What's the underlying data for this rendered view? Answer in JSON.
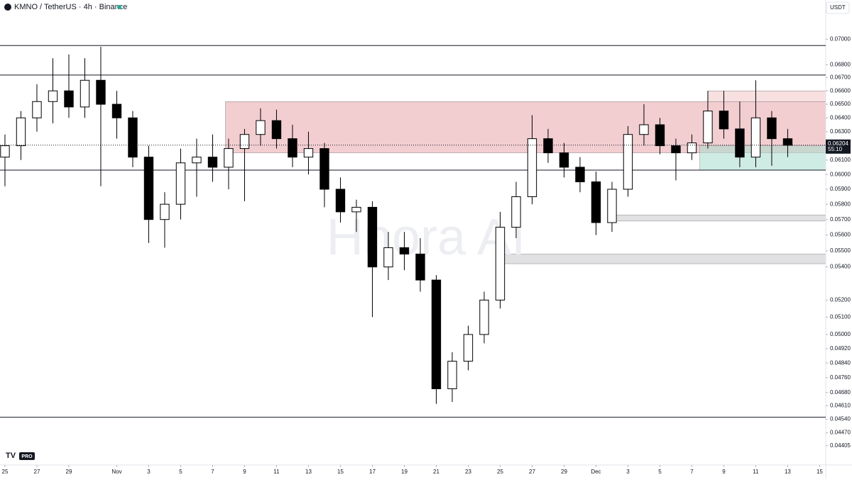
{
  "chart_data": {
    "type": "candlestick",
    "title": "KMNO / TetherUS · 4h · Binance",
    "currency": "USDT",
    "watermark": "Hnora AI",
    "logo": "PRO",
    "countdown": "55:10",
    "last_price": {
      "value": 0.06204,
      "label": "0.06204"
    },
    "log_scale": true,
    "up_color": "#ffffff",
    "down_color": "#000000",
    "categories": [
      null,
      null,
      null,
      null,
      null,
      null,
      null,
      null,
      null,
      null,
      null,
      null,
      null,
      null,
      null,
      null,
      null,
      null,
      null,
      null,
      null,
      null,
      null,
      null,
      null,
      null,
      null,
      null,
      null,
      null,
      null,
      null,
      null,
      null,
      null,
      null,
      null,
      null,
      null,
      null,
      null,
      null,
      null,
      null,
      null,
      null,
      null,
      null,
      null,
      null
    ],
    "open": [
      0.0612,
      0.062,
      0.064,
      0.0652,
      0.066,
      0.0648,
      0.0668,
      0.065,
      0.064,
      0.0612,
      0.057,
      0.058,
      0.0608,
      0.0612,
      0.0605,
      0.0618,
      0.0628,
      0.0638,
      0.0625,
      0.0612,
      0.0618,
      0.059,
      0.0575,
      0.0578,
      0.054,
      0.0552,
      0.0548,
      0.0532,
      0.047,
      0.0485,
      0.05,
      0.052,
      0.0565,
      0.0585,
      0.0625,
      0.0615,
      0.0605,
      0.0595,
      0.0568,
      0.059,
      0.0628,
      0.0635,
      0.062,
      0.0615,
      0.0622,
      0.0645,
      0.0632,
      0.0612,
      0.064,
      0.0625
    ],
    "high": [
      0.0628,
      0.0645,
      0.0665,
      0.0685,
      0.0688,
      0.0685,
      0.0694,
      0.066,
      0.0645,
      0.062,
      0.0588,
      0.0618,
      0.0625,
      0.0628,
      0.0625,
      0.0632,
      0.0647,
      0.0646,
      0.0635,
      0.063,
      0.0622,
      0.0598,
      0.0583,
      0.0582,
      0.0562,
      0.0562,
      0.0558,
      0.0535,
      0.049,
      0.0505,
      0.0525,
      0.0575,
      0.0595,
      0.0642,
      0.0632,
      0.0622,
      0.0612,
      0.0602,
      0.0595,
      0.0634,
      0.065,
      0.064,
      0.0625,
      0.0628,
      0.066,
      0.066,
      0.0652,
      0.0668,
      0.0645,
      0.0632
    ],
    "low": [
      0.0592,
      0.061,
      0.063,
      0.0636,
      0.064,
      0.064,
      0.0592,
      0.0625,
      0.0605,
      0.0555,
      0.0552,
      0.057,
      0.0585,
      0.0595,
      0.059,
      0.0582,
      0.062,
      0.0618,
      0.0605,
      0.06,
      0.0578,
      0.0568,
      0.0562,
      0.051,
      0.0532,
      0.0538,
      0.0525,
      0.0462,
      0.0463,
      0.048,
      0.0495,
      0.0515,
      0.0558,
      0.058,
      0.0608,
      0.0598,
      0.0588,
      0.056,
      0.0562,
      0.0585,
      0.062,
      0.0614,
      0.0596,
      0.061,
      0.0618,
      0.0625,
      0.0605,
      0.0605,
      0.0606,
      0.0612
    ],
    "close": [
      0.062,
      0.064,
      0.0652,
      0.066,
      0.0648,
      0.0668,
      0.065,
      0.064,
      0.0612,
      0.057,
      0.058,
      0.0608,
      0.0612,
      0.0605,
      0.0618,
      0.0628,
      0.0638,
      0.0625,
      0.0612,
      0.0618,
      0.059,
      0.0575,
      0.0578,
      0.054,
      0.0552,
      0.0548,
      0.0532,
      0.047,
      0.0485,
      0.05,
      0.052,
      0.0565,
      0.0585,
      0.0625,
      0.0615,
      0.0605,
      0.0595,
      0.0568,
      0.059,
      0.0628,
      0.0635,
      0.062,
      0.0615,
      0.0622,
      0.0645,
      0.0632,
      0.0612,
      0.064,
      0.0625,
      0.06204
    ],
    "xlim": [
      -0.31,
      51.38
    ],
    "xticks": [
      {
        "value": 0,
        "label": "25"
      },
      {
        "value": 2,
        "label": "27"
      },
      {
        "value": 4,
        "label": "29"
      },
      {
        "value": 7,
        "label": "Nov"
      },
      {
        "value": 9,
        "label": "3"
      },
      {
        "value": 11,
        "label": "5"
      },
      {
        "value": 13,
        "label": "7"
      },
      {
        "value": 15,
        "label": "9"
      },
      {
        "value": 17,
        "label": "11"
      },
      {
        "value": 19,
        "label": "13"
      },
      {
        "value": 21,
        "label": "15"
      },
      {
        "value": 23,
        "label": "17"
      },
      {
        "value": 25,
        "label": "19"
      },
      {
        "value": 27,
        "label": "21"
      },
      {
        "value": 29,
        "label": "23"
      },
      {
        "value": 31,
        "label": "25"
      },
      {
        "value": 33,
        "label": "27"
      },
      {
        "value": 35,
        "label": "29"
      },
      {
        "value": 37,
        "label": "Dec"
      },
      {
        "value": 39,
        "label": "3"
      },
      {
        "value": 41,
        "label": "5"
      },
      {
        "value": 43,
        "label": "7"
      },
      {
        "value": 45,
        "label": "9"
      },
      {
        "value": 47,
        "label": "11"
      },
      {
        "value": 49,
        "label": "13"
      },
      {
        "value": 51,
        "label": "15"
      }
    ],
    "ylim": [
      0.0433,
      0.0732
    ],
    "yticks": [
      {
        "value": 0.07,
        "label": "0.07000"
      },
      {
        "value": 0.068,
        "label": "0.06800"
      },
      {
        "value": 0.067,
        "label": "0.06700"
      },
      {
        "value": 0.066,
        "label": "0.06600"
      },
      {
        "value": 0.065,
        "label": "0.06500"
      },
      {
        "value": 0.064,
        "label": "0.06400"
      },
      {
        "value": 0.063,
        "label": "0.06300"
      },
      {
        "value": 0.061,
        "label": "0.06100"
      },
      {
        "value": 0.06,
        "label": "0.06000"
      },
      {
        "value": 0.059,
        "label": "0.05900"
      },
      {
        "value": 0.058,
        "label": "0.05800"
      },
      {
        "value": 0.057,
        "label": "0.05700"
      },
      {
        "value": 0.056,
        "label": "0.05600"
      },
      {
        "value": 0.055,
        "label": "0.05500"
      },
      {
        "value": 0.054,
        "label": "0.05400"
      },
      {
        "value": 0.052,
        "label": "0.05200"
      },
      {
        "value": 0.051,
        "label": "0.05100"
      },
      {
        "value": 0.05,
        "label": "0.05000"
      },
      {
        "value": 0.0492,
        "label": "0.04920"
      },
      {
        "value": 0.0484,
        "label": "0.04840"
      },
      {
        "value": 0.0476,
        "label": "0.04760"
      },
      {
        "value": 0.0468,
        "label": "0.04680"
      },
      {
        "value": 0.0461,
        "label": "0.04610"
      },
      {
        "value": 0.0454,
        "label": "0.04540"
      },
      {
        "value": 0.0447,
        "label": "0.04470"
      },
      {
        "value": 0.04405,
        "label": "0.04405"
      }
    ],
    "levels": [
      0.0695,
      0.0672,
      0.0603,
      0.0455
    ],
    "zones": [
      {
        "from": 13.8,
        "y": [
          0.0615,
          0.0652
        ],
        "color": "#e8a5ab"
      },
      {
        "from": 44.0,
        "y": [
          0.0652,
          0.066
        ],
        "color": "#f2c4c7"
      },
      {
        "from": 43.5,
        "y": [
          0.0603,
          0.062
        ],
        "color": "#a8dccd"
      },
      {
        "from": 38.0,
        "y": [
          0.0569,
          0.0573
        ],
        "color": "#c8c8cc"
      },
      {
        "from": 31.0,
        "y": [
          0.0542,
          0.0548
        ],
        "color": "#c8c8cc"
      }
    ]
  }
}
